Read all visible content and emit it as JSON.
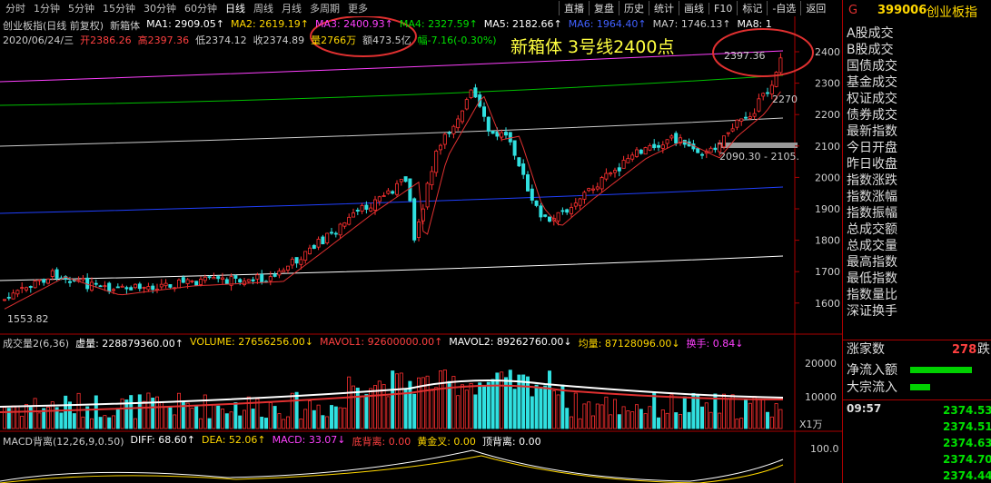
{
  "toolbar": {
    "tabs": [
      "分时",
      "1分钟",
      "5分钟",
      "15分钟",
      "30分钟",
      "60分钟",
      "日线",
      "周线",
      "月线",
      "多周期",
      "更多"
    ],
    "buttons": [
      "直播",
      "复盘",
      "历史",
      "统计",
      "画线",
      "F10",
      "标记",
      "-自选",
      "返回"
    ]
  },
  "price_panel": {
    "title": "创业板指(日线 前复权)",
    "indicator": "新箱体",
    "ma": [
      "MA1: 2909.05↑",
      "MA2: 2619.19↑",
      "MA3: 2400.93↑",
      "MA4: 2327.59↑",
      "MA5: 2182.66↑",
      "MA6: 1964.40↑",
      "MA7: 1746.13↑",
      "MA8: 1"
    ],
    "ohlc": [
      "2020/06/24/三",
      "开2386.26",
      "高2397.36",
      "低2374.12",
      "收2374.89",
      "量2766万",
      "额473.5亿",
      "幅-7.16(-0.30%)"
    ],
    "annotation": "新箱体 3号线2400点",
    "axis": [
      "2400",
      "2300",
      "2200",
      "2100",
      "2000",
      "1900",
      "1800",
      "1700",
      "1600"
    ],
    "high_label": "2397.36",
    "mid_label": "2270",
    "box_label": "2090.30 - 2105.",
    "low_label": "1553.82"
  },
  "volume_panel": {
    "items": [
      "成交量2(6,36)",
      "虚量: 228879360.00↑",
      "VOLUME: 27656256.00↓",
      "MAVOL1: 92600000.00↑",
      "MAVOL2: 89262760.00↓",
      "均量: 87128096.00↓",
      "换手: 0.84↓"
    ],
    "axis": [
      "20000",
      "10000"
    ],
    "unit": "X1万"
  },
  "macd_panel": {
    "items": [
      "MACD背离(12,26,9,0.50)",
      "DIFF: 68.60↑",
      "DEA: 52.06↑",
      "MACD: 33.07↓",
      "底背离: 0.00",
      "黄金叉: 0.00",
      "顶背离: 0.00"
    ],
    "axis": [
      "100.0"
    ]
  },
  "side": {
    "flag": "G",
    "code": "399006",
    "name": "创业板指",
    "fields": [
      "A股成交",
      "B股成交",
      "国债成交",
      "基金成交",
      "权证成交",
      "债券成交",
      "最新指数",
      "今日开盘",
      "昨日收盘",
      "指数涨跌",
      "指数涨幅",
      "指数振幅",
      "总成交额",
      "总成交量",
      "最高指数",
      "最低指数",
      "指数量比",
      "深证换手"
    ],
    "rise_label": "涨家数",
    "rise_value": "278",
    "fall_label": "跌",
    "flow1": "净流入额",
    "flow2": "大宗流入",
    "time": "09:57",
    "ticks": [
      "2374.53",
      "2374.51",
      "2374.63",
      "2374.70",
      "2374.44"
    ]
  }
}
